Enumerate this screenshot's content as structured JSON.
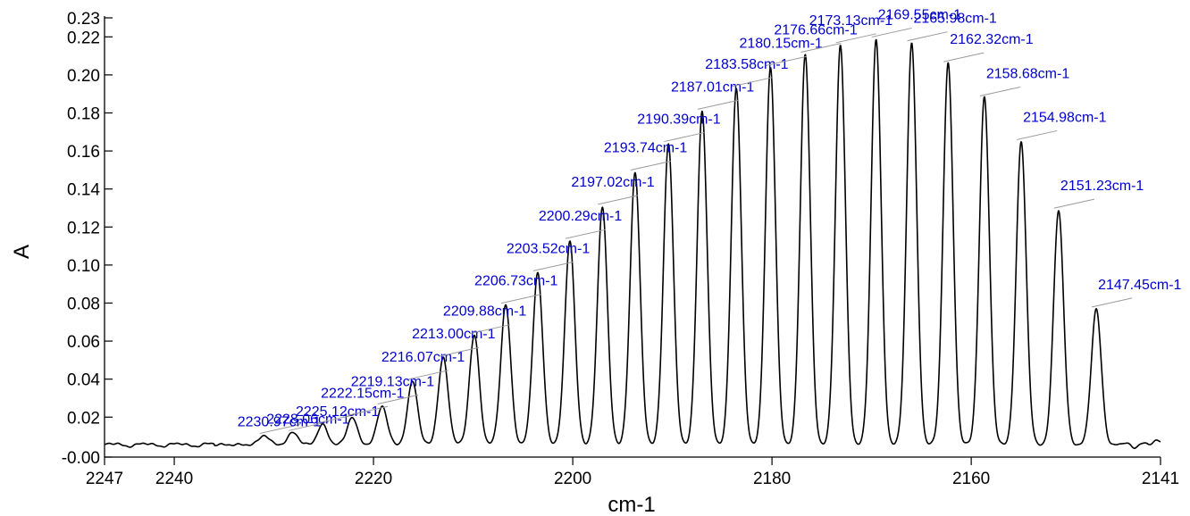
{
  "chart_data": {
    "type": "line",
    "xlabel": "cm-1",
    "ylabel": "A",
    "xlim": [
      2247,
      2141
    ],
    "x_reversed": true,
    "ylim": [
      -0.001,
      0.23
    ],
    "grid": false,
    "xticks": [
      2247,
      2240,
      2220,
      2200,
      2180,
      2160,
      2141
    ],
    "yticks": [
      {
        "value": -0.001,
        "label": "-0.00"
      },
      {
        "value": 0.02,
        "label": "0.02"
      },
      {
        "value": 0.04,
        "label": "0.04"
      },
      {
        "value": 0.06,
        "label": "0.06"
      },
      {
        "value": 0.08,
        "label": "0.08"
      },
      {
        "value": 0.1,
        "label": "0.10"
      },
      {
        "value": 0.12,
        "label": "0.12"
      },
      {
        "value": 0.14,
        "label": "0.14"
      },
      {
        "value": 0.16,
        "label": "0.16"
      },
      {
        "value": 0.18,
        "label": "0.18"
      },
      {
        "value": 0.2,
        "label": "0.20"
      },
      {
        "value": 0.22,
        "label": "0.22"
      },
      {
        "value": 0.23,
        "label": "0.23"
      }
    ],
    "baseline": 0.0055,
    "colors": {
      "spectrum": "#000000",
      "labels": "#0000cc"
    },
    "peaks": [
      {
        "x": 2230.97,
        "y": 0.0105,
        "label": "2230.97cm-1"
      },
      {
        "x": 2228.06,
        "y": 0.012,
        "label": "2228.06cm-1"
      },
      {
        "x": 2225.12,
        "y": 0.016,
        "label": "2225.12cm-1"
      },
      {
        "x": 2222.15,
        "y": 0.02,
        "label": "2222.15cm-1"
      },
      {
        "x": 2219.13,
        "y": 0.026,
        "label": "2219.13cm-1"
      },
      {
        "x": 2216.07,
        "y": 0.039,
        "label": "2216.07cm-1"
      },
      {
        "x": 2213.0,
        "y": 0.051,
        "label": "2213.00cm-1"
      },
      {
        "x": 2209.88,
        "y": 0.063,
        "label": "2209.88cm-1"
      },
      {
        "x": 2206.73,
        "y": 0.079,
        "label": "2206.73cm-1"
      },
      {
        "x": 2203.52,
        "y": 0.096,
        "label": "2203.52cm-1"
      },
      {
        "x": 2200.29,
        "y": 0.113,
        "label": "2200.29cm-1"
      },
      {
        "x": 2197.02,
        "y": 0.131,
        "label": "2197.02cm-1"
      },
      {
        "x": 2193.74,
        "y": 0.149,
        "label": "2193.74cm-1"
      },
      {
        "x": 2190.39,
        "y": 0.164,
        "label": "2190.39cm-1"
      },
      {
        "x": 2187.01,
        "y": 0.181,
        "label": "2187.01cm-1"
      },
      {
        "x": 2183.58,
        "y": 0.193,
        "label": "2183.58cm-1"
      },
      {
        "x": 2180.15,
        "y": 0.204,
        "label": "2180.15cm-1"
      },
      {
        "x": 2176.66,
        "y": 0.211,
        "label": "2176.66cm-1"
      },
      {
        "x": 2173.13,
        "y": 0.216,
        "label": "2173.13cm-1"
      },
      {
        "x": 2169.55,
        "y": 0.219,
        "label": "2169.55cm-1"
      },
      {
        "x": 2165.98,
        "y": 0.217,
        "label": "2165.98cm-1"
      },
      {
        "x": 2162.32,
        "y": 0.206,
        "label": "2162.32cm-1"
      },
      {
        "x": 2158.68,
        "y": 0.188,
        "label": "2158.68cm-1"
      },
      {
        "x": 2154.98,
        "y": 0.165,
        "label": "2154.98cm-1"
      },
      {
        "x": 2151.23,
        "y": 0.129,
        "label": "2151.23cm-1"
      },
      {
        "x": 2147.45,
        "y": 0.077,
        "label": "2147.45cm-1"
      }
    ]
  }
}
